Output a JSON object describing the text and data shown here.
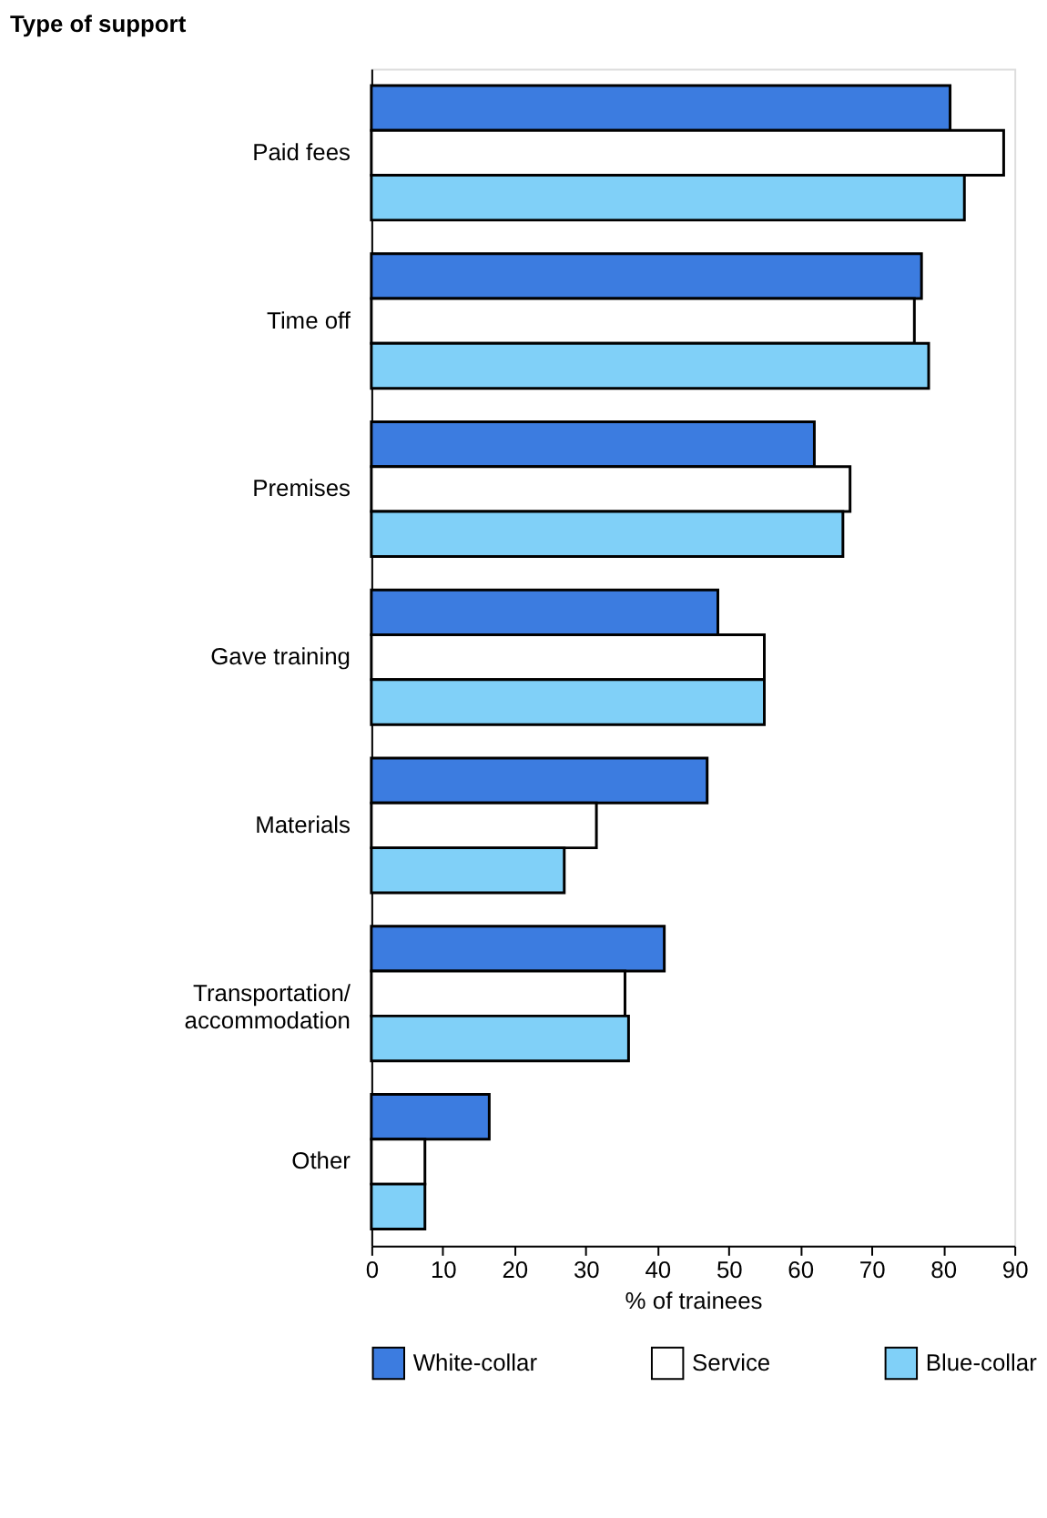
{
  "chart_data": {
    "type": "bar",
    "orientation": "horizontal",
    "ylabel": "Type of support",
    "xlabel": "% of trainees",
    "categories": [
      "Paid fees",
      "Time off",
      "Premises",
      "Gave training",
      "Materials",
      "Transportation/ accommodation",
      "Other"
    ],
    "series": [
      {
        "name": "White-collar",
        "color": "#3c7ce0",
        "values": [
          81,
          77,
          62,
          48.5,
          47,
          41,
          16.5
        ]
      },
      {
        "name": "Service",
        "color": "#ffffff",
        "values": [
          88.5,
          76,
          67,
          55,
          31.5,
          35.5,
          7.5
        ]
      },
      {
        "name": "Blue-collar",
        "color": "#80d0f8",
        "values": [
          83,
          78,
          66,
          55,
          27,
          36,
          7.5
        ]
      }
    ],
    "xlim": [
      0,
      90
    ],
    "xticks": [
      0,
      10,
      20,
      30,
      40,
      50,
      60,
      70,
      80,
      90
    ],
    "grid": false,
    "legend": "bottom"
  }
}
